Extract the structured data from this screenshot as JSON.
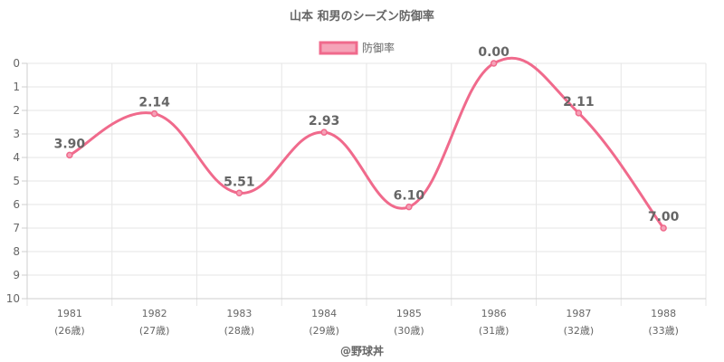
{
  "chart_data": {
    "type": "line",
    "title": "山本 和男のシーズン防御率",
    "categories": [
      "1981",
      "1982",
      "1983",
      "1984",
      "1985",
      "1986",
      "1987",
      "1988"
    ],
    "category_sublabels": [
      "(26歳)",
      "(27歳)",
      "(28歳)",
      "(29歳)",
      "(30歳)",
      "(31歳)",
      "(32歳)",
      "(33歳)"
    ],
    "series": [
      {
        "name": "防御率",
        "values": [
          3.9,
          2.14,
          5.51,
          2.93,
          6.1,
          0.0,
          2.11,
          7.0
        ],
        "color": "#f06a8c"
      }
    ],
    "data_labels": [
      "3.90",
      "2.14",
      "5.51",
      "2.93",
      "6.10",
      "0.00",
      "2.11",
      "7.00"
    ],
    "y_ticks": [
      "0",
      "1",
      "2",
      "3",
      "4",
      "5",
      "6",
      "7",
      "8",
      "9",
      "10"
    ],
    "ylim": [
      0,
      10
    ],
    "y_reversed": true,
    "legend_position": "top",
    "grid": true,
    "xlabel": "",
    "ylabel": ""
  },
  "footer": "@野球丼",
  "colors": {
    "line": "#f06a8c",
    "legend_fill": "#f5a3b8",
    "text": "#666666"
  }
}
